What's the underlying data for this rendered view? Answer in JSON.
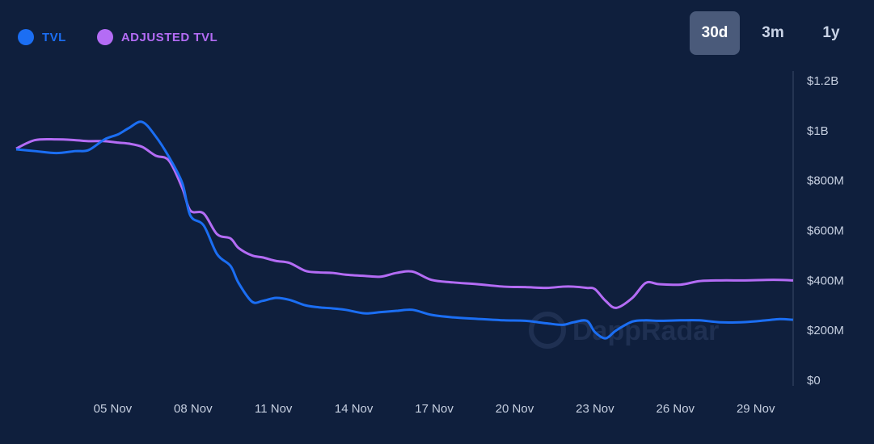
{
  "colors": {
    "tvl": "#1b6ef3",
    "adjusted": "#b46cf5",
    "background": "#0f1f3d"
  },
  "legend": [
    {
      "label": "TVL",
      "color": "#1b6ef3"
    },
    {
      "label": "ADJUSTED TVL",
      "color": "#b46cf5"
    }
  ],
  "ranges": [
    {
      "label": "30d",
      "active": true
    },
    {
      "label": "3m",
      "active": false
    },
    {
      "label": "1y",
      "active": false
    }
  ],
  "watermark": "DappRadar",
  "chart_data": {
    "type": "line",
    "x_labels": [
      "05 Nov",
      "08 Nov",
      "11 Nov",
      "14 Nov",
      "17 Nov",
      "20 Nov",
      "23 Nov",
      "26 Nov",
      "29 Nov"
    ],
    "y_ticks": [
      "$0",
      "$200M",
      "$400M",
      "$600M",
      "$800M",
      "$1B",
      "$1.2B"
    ],
    "ylim": [
      0,
      1200
    ],
    "xlim": [
      2,
      31
    ],
    "y_unit": "M",
    "series": [
      {
        "name": "TVL",
        "x": [
          2,
          2.7,
          3.5,
          4.2,
          4.7,
          5.3,
          5.8,
          6.2,
          6.7,
          7.2,
          7.7,
          8.2,
          8.5,
          9,
          9.5,
          10,
          10.3,
          10.8,
          11.2,
          11.7,
          12.2,
          12.8,
          13.3,
          13.8,
          14.3,
          15,
          15.6,
          16.2,
          16.8,
          17.5,
          18.3,
          19.2,
          20.2,
          21,
          21.8,
          22.4,
          22.8,
          23.3,
          23.6,
          24,
          24.4,
          25,
          25.5,
          26,
          26.8,
          27.5,
          28.3,
          29.2,
          30,
          30.5,
          31
        ],
        "values": [
          925,
          918,
          910,
          918,
          922,
          965,
          985,
          1010,
          1035,
          978,
          895,
          790,
          660,
          620,
          505,
          458,
          390,
          315,
          318,
          330,
          322,
          300,
          292,
          288,
          282,
          268,
          273,
          278,
          282,
          262,
          252,
          246,
          240,
          238,
          228,
          222,
          232,
          238,
          193,
          168,
          200,
          235,
          240,
          238,
          240,
          240,
          232,
          233,
          240,
          245,
          242
        ]
      },
      {
        "name": "ADJUSTED TVL",
        "x": [
          2,
          2.7,
          3.5,
          4.2,
          4.7,
          5.3,
          5.8,
          6.2,
          6.7,
          7.2,
          7.7,
          8.2,
          8.5,
          9,
          9.5,
          10,
          10.3,
          10.8,
          11.2,
          11.7,
          12.2,
          12.8,
          13.3,
          13.8,
          14.3,
          15,
          15.6,
          16.2,
          16.8,
          17.5,
          18.3,
          19.2,
          20.2,
          21,
          21.8,
          22.4,
          22.8,
          23.3,
          23.6,
          24,
          24.4,
          25,
          25.5,
          26,
          26.8,
          27.5,
          28.3,
          29.2,
          30,
          30.5,
          31
        ],
        "values": [
          928,
          962,
          965,
          962,
          958,
          958,
          952,
          948,
          935,
          900,
          880,
          770,
          680,
          668,
          585,
          568,
          530,
          500,
          492,
          478,
          470,
          438,
          432,
          430,
          423,
          418,
          415,
          430,
          435,
          402,
          392,
          385,
          375,
          373,
          370,
          375,
          375,
          370,
          365,
          318,
          290,
          330,
          390,
          385,
          383,
          397,
          400,
          400,
          402,
          402,
          400
        ]
      }
    ]
  }
}
